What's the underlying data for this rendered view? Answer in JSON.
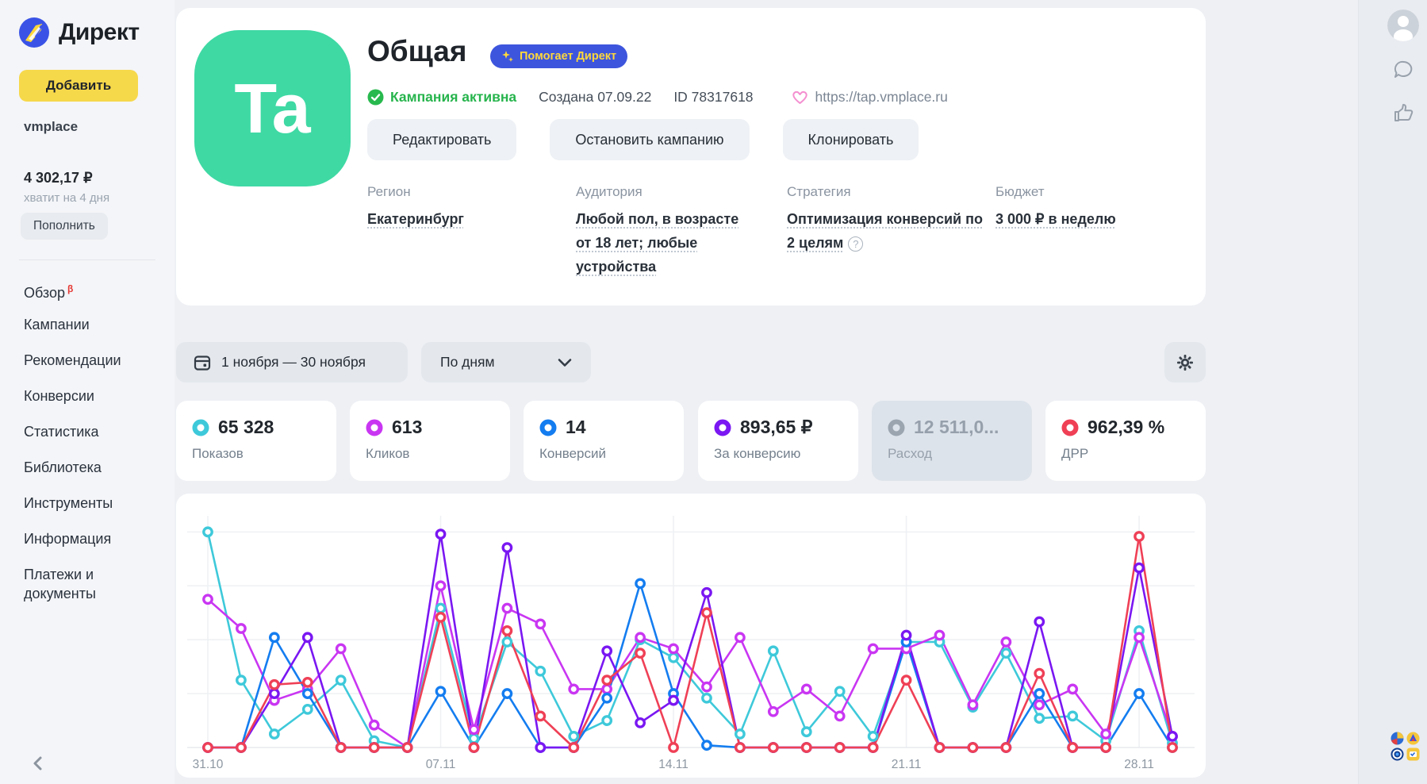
{
  "sidebar": {
    "logo_text": "Директ",
    "add_button": "Добавить",
    "account": "vmplace",
    "balance": "4 302,17 ₽",
    "balance_note": "хватит на 4 дня",
    "topup_button": "Пополнить",
    "menu": [
      {
        "label": "Обзор",
        "beta": "β"
      },
      {
        "label": "Кампании",
        "beta": ""
      },
      {
        "label": "Рекомендации",
        "beta": ""
      },
      {
        "label": "Конверсии",
        "beta": ""
      },
      {
        "label": "Статистика",
        "beta": ""
      },
      {
        "label": "Библиотека",
        "beta": ""
      },
      {
        "label": "Инструменты",
        "beta": ""
      },
      {
        "label": "Информация",
        "beta": ""
      },
      {
        "label": "Платежи и документы",
        "beta": ""
      }
    ]
  },
  "campaign": {
    "avatar_text": "Ta",
    "title": "Общая",
    "badge": "Помогает Директ",
    "status": "Кампания активна",
    "created": "Создана 07.09.22",
    "id": "ID 78317618",
    "url": "https://tap.vmplace.ru",
    "actions": [
      "Редактировать",
      "Остановить кампанию",
      "Клонировать"
    ],
    "details": [
      {
        "label": "Регион",
        "value": "Екатеринбург"
      },
      {
        "label": "Аудитория",
        "value": "Любой пол, в возрасте от 18 лет; любые устройства"
      },
      {
        "label": "Стратегия",
        "value": "Оптимизация конверсий по 2 целям"
      },
      {
        "label": "Бюджет",
        "value": "3 000 ₽ в неделю"
      }
    ]
  },
  "filters": {
    "date_range": "1 ноября — 30 ноября",
    "granularity": "По дням"
  },
  "metrics": [
    {
      "value": "65 328",
      "label": "Показов",
      "color": "#3ec9da",
      "active": true
    },
    {
      "value": "613",
      "label": "Кликов",
      "color": "#c936f2",
      "active": true
    },
    {
      "value": "14",
      "label": "Конверсий",
      "color": "#147df0",
      "active": true
    },
    {
      "value": "893,65 ₽",
      "label": "За конверсию",
      "color": "#7a17f2",
      "active": true
    },
    {
      "value": "12 511,0...",
      "label": "Расход",
      "color": "#9aa5b0",
      "active": false
    },
    {
      "value": "962,39 %",
      "label": "ДРР",
      "color": "#ef4056",
      "active": true
    }
  ],
  "chart_data": {
    "type": "line",
    "x_tick_labels": [
      "31.10",
      "07.11",
      "14.11",
      "21.11",
      "28.11"
    ],
    "x_tick_indices": [
      0,
      7,
      14,
      21,
      28
    ],
    "points_per_series": 30,
    "ylim": [
      0,
      100
    ],
    "grid_y_values": [
      24,
      48,
      72,
      96
    ],
    "legend_position": "none",
    "grid": true,
    "series": [
      {
        "name": "Показы",
        "color": "#3ec9da",
        "values": [
          96,
          30,
          6,
          17,
          30,
          3,
          0,
          62,
          4,
          47,
          34,
          5,
          12,
          48,
          40,
          22,
          6,
          43,
          7,
          25,
          5,
          47,
          47,
          18,
          42,
          13,
          14,
          3,
          52,
          2
        ]
      },
      {
        "name": "Клики",
        "color": "#c936f2",
        "values": [
          66,
          53,
          21,
          26,
          44,
          10,
          0,
          72,
          8,
          62,
          55,
          26,
          26,
          49,
          44,
          27,
          49,
          16,
          26,
          14,
          44,
          44,
          50,
          19,
          47,
          19,
          26,
          6,
          49,
          5
        ]
      },
      {
        "name": "Конверсии",
        "color": "#147df0",
        "values": [
          0,
          0,
          49,
          24,
          0,
          0,
          0,
          25,
          0,
          24,
          0,
          0,
          22,
          73,
          24,
          1,
          0,
          0,
          0,
          0,
          0,
          47,
          0,
          0,
          0,
          24,
          0,
          0,
          24,
          0
        ]
      },
      {
        "name": "За конверсию",
        "color": "#7a17f2",
        "values": [
          0,
          0,
          24,
          49,
          0,
          0,
          0,
          95,
          0,
          89,
          0,
          0,
          43,
          11,
          21,
          69,
          0,
          0,
          0,
          0,
          0,
          50,
          0,
          0,
          0,
          56,
          0,
          0,
          80,
          5
        ]
      },
      {
        "name": "ДРР",
        "color": "#ef4056",
        "values": [
          0,
          0,
          28,
          29,
          0,
          0,
          0,
          58,
          0,
          52,
          14,
          0,
          30,
          42,
          0,
          60,
          0,
          0,
          0,
          0,
          0,
          30,
          0,
          0,
          0,
          33,
          0,
          0,
          94,
          0
        ]
      }
    ]
  }
}
